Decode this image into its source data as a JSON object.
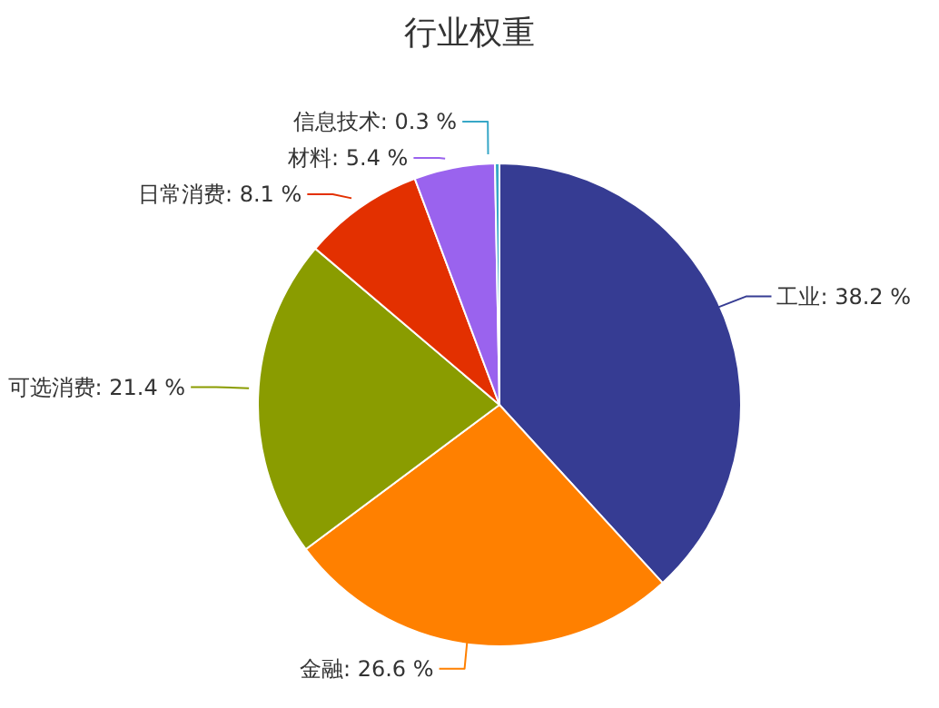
{
  "chart_data": {
    "type": "pie",
    "title": "行业权重",
    "categories": [
      "工业",
      "金融",
      "可选消费",
      "日常消费",
      "材料",
      "信息技术"
    ],
    "values": [
      38.2,
      26.6,
      21.4,
      8.1,
      5.4,
      0.3
    ],
    "value_labels": [
      "38.2 %",
      "26.6 %",
      "21.4 %",
      "8.1 %",
      "5.4 %",
      "0.3 %"
    ],
    "colors": [
      "#363c93",
      "#ff8000",
      "#8a9c00",
      "#e33000",
      "#9a63ee",
      "#37a7c7"
    ],
    "legend": false
  }
}
